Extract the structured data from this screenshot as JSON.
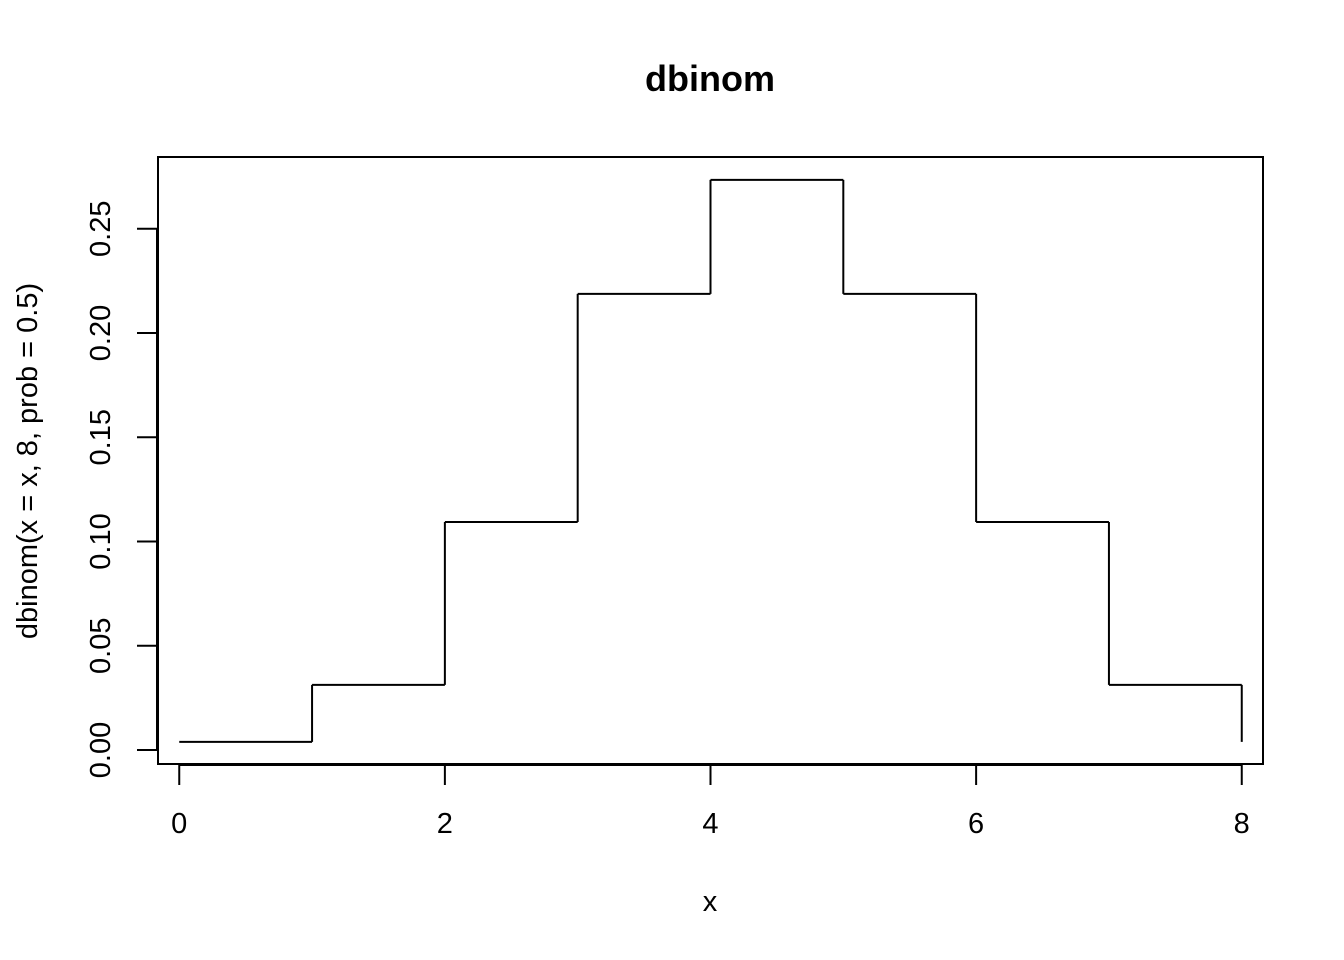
{
  "chart_data": {
    "type": "line",
    "style": "step",
    "title": "dbinom",
    "xlabel": "x",
    "ylabel": "dbinom(x = x, 8, prob = 0.5)",
    "x": [
      0,
      1,
      2,
      3,
      4,
      5,
      6,
      7,
      8
    ],
    "y": [
      0.00390625,
      0.03125,
      0.109375,
      0.21875,
      0.2734375,
      0.21875,
      0.109375,
      0.03125,
      0.00390625
    ],
    "xlim": [
      -0.16,
      8.16
    ],
    "ylim": [
      -0.0067,
      0.2844
    ],
    "xticks": [
      0,
      2,
      4,
      6,
      8
    ],
    "xtick_labels": [
      "0",
      "2",
      "4",
      "6",
      "8"
    ],
    "yticks": [
      0.0,
      0.05,
      0.1,
      0.15,
      0.2,
      0.25
    ],
    "ytick_labels": [
      "0.00",
      "0.05",
      "0.10",
      "0.15",
      "0.20",
      "0.25"
    ],
    "grid": false,
    "line_color": "#000000"
  }
}
